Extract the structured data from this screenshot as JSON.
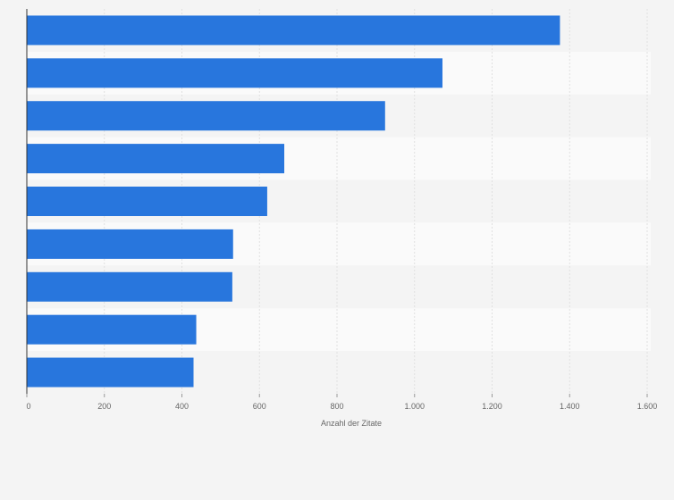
{
  "chart_data": {
    "type": "bar",
    "orientation": "horizontal",
    "categories": [
      "",
      "",
      "",
      "",
      "",
      "",
      "",
      "",
      ""
    ],
    "values": [
      1375,
      1072,
      924,
      664,
      620,
      532,
      530,
      437,
      430
    ],
    "xlabel": "Anzahl der Zitate",
    "ylabel": "",
    "xlim": [
      0,
      1600
    ],
    "x_ticks": [
      0,
      200,
      400,
      600,
      800,
      1000,
      1200,
      1400,
      1600
    ],
    "x_tick_labels": [
      "0",
      "200",
      "400",
      "600",
      "800",
      "1.000",
      "1.200",
      "1.400",
      "1.600"
    ],
    "grid": true,
    "bar_color": "#2876dd",
    "band_colors": [
      "#f4f4f4",
      "#fafafa"
    ],
    "grid_color": "#e0e0e0",
    "axis_color": "#333333"
  }
}
